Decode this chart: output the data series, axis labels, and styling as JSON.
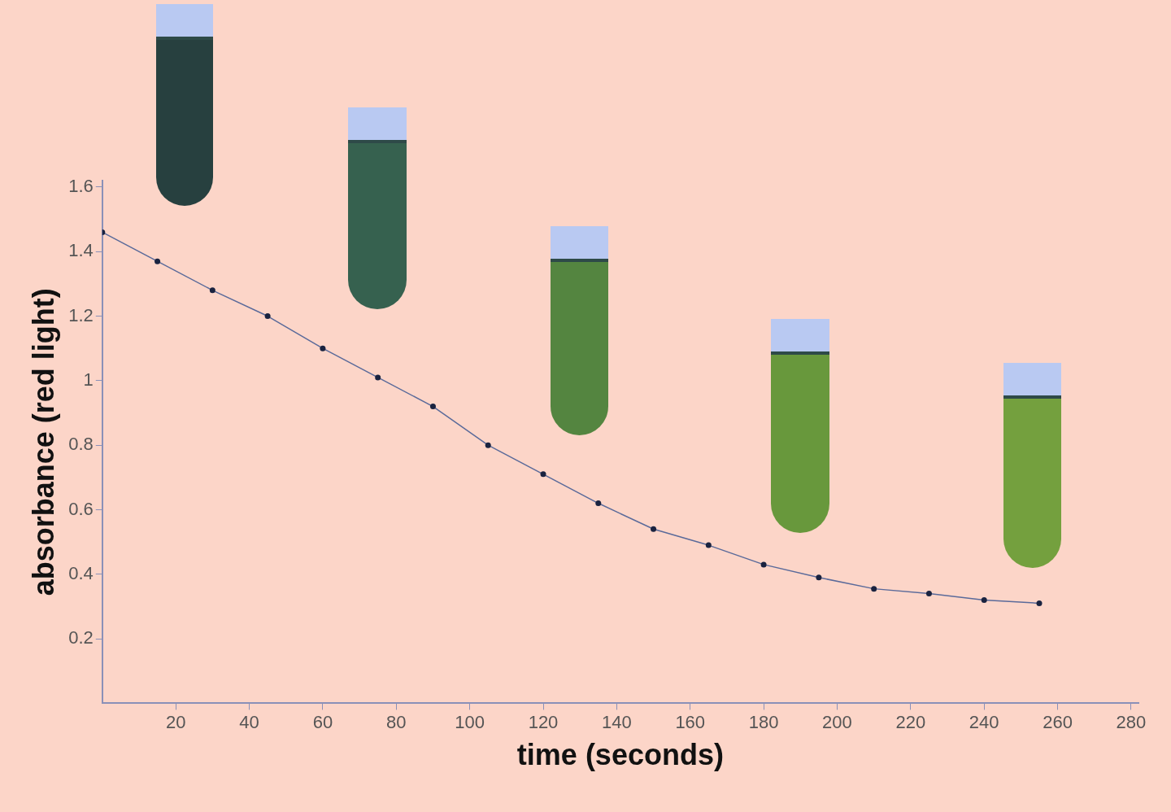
{
  "chart_data": {
    "type": "line",
    "xlabel": "time (seconds)",
    "ylabel": "absorbance (red light)",
    "x": [
      0,
      15,
      30,
      45,
      60,
      75,
      90,
      105,
      120,
      135,
      150,
      165,
      180,
      195,
      210,
      225,
      240,
      255
    ],
    "series": [
      {
        "color": "#5a6a9a",
        "values": [
          1.46,
          1.37,
          1.28,
          1.2,
          1.1,
          1.01,
          0.92,
          0.8,
          0.71,
          0.62,
          0.54,
          0.49,
          0.43,
          0.39,
          0.355,
          0.34,
          0.32,
          0.31
        ]
      }
    ],
    "xlim": [
      0,
      282
    ],
    "ylim": [
      0,
      1.62
    ],
    "xticks": [
      20,
      40,
      60,
      80,
      100,
      120,
      140,
      160,
      180,
      200,
      220,
      240,
      260,
      280
    ],
    "yticks": [
      0.2,
      0.4,
      0.6,
      0.8,
      1,
      1.2,
      1.4,
      1.6
    ],
    "grid": false,
    "legend": false,
    "marker": "circle",
    "line_style": "solid"
  }
}
